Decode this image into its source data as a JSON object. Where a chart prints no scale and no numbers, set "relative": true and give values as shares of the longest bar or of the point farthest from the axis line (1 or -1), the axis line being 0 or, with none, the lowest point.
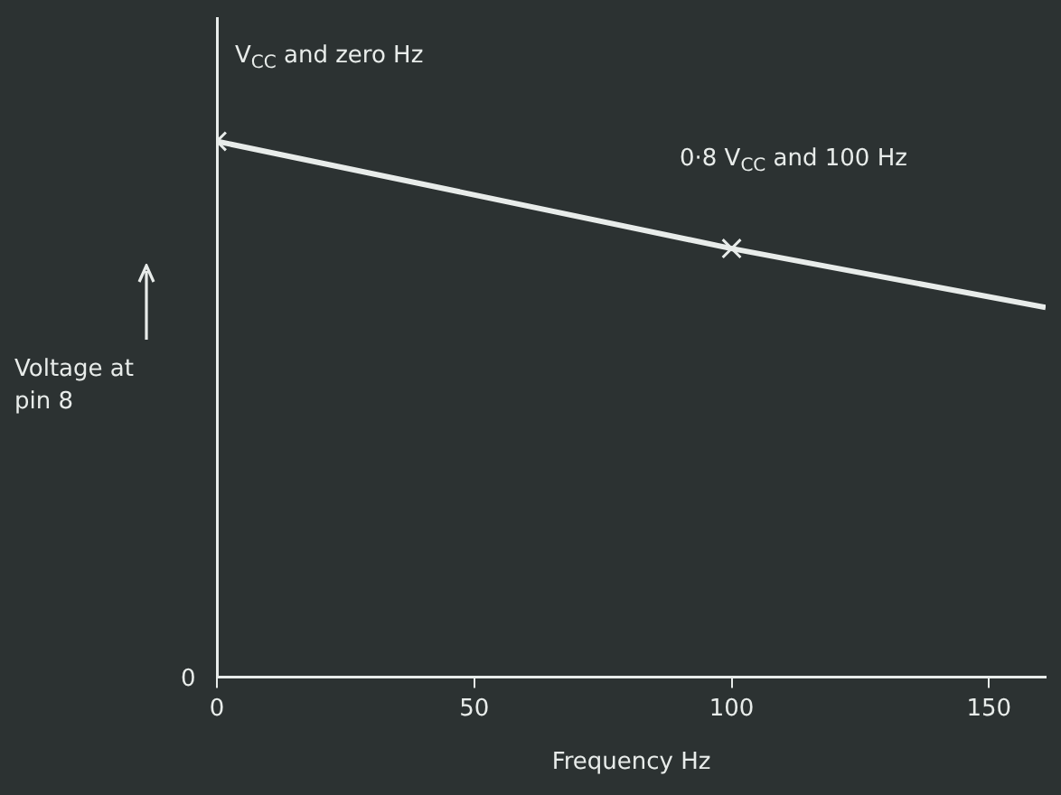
{
  "chart_data": {
    "type": "line",
    "xlabel": "Frequency Hz",
    "ylabel": "Voltage at pin 8",
    "relative": true,
    "x": [
      0,
      100,
      161
    ],
    "values": [
      1,
      0.8,
      0.69
    ],
    "color": "#e8ecea",
    "marker": "cross",
    "xlim": [
      0,
      161
    ],
    "xticks": [
      0,
      50,
      100,
      150
    ],
    "grid": false,
    "legend": false,
    "annotations": [
      "V$_{CC}$ and zero Hz",
      "0·8 V$_{CC}$ and 100 Hz",
      "0"
    ]
  }
}
